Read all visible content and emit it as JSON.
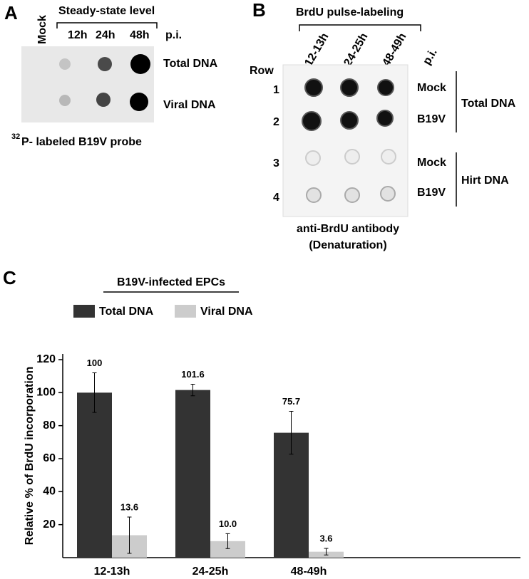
{
  "panel_a": {
    "letter": "A",
    "mock": "Mock",
    "header": "Steady-state level",
    "columns": [
      "12h",
      "24h",
      "48h"
    ],
    "pi": "p.i.",
    "rows": [
      "Total DNA",
      "Viral DNA"
    ],
    "probe_sup": "32",
    "probe": "P- labeled B19V probe"
  },
  "panel_b": {
    "letter": "B",
    "header": "BrdU pulse-labeling",
    "columns": [
      "12-13h",
      "24-25h",
      "48-49h"
    ],
    "pi": "p.i.",
    "row_title": "Row",
    "row_numbers": [
      "1",
      "2",
      "3",
      "4"
    ],
    "row_labels": [
      "Mock",
      "B19V",
      "Mock",
      "B19V"
    ],
    "groups": [
      "Total DNA",
      "Hirt DNA"
    ],
    "caption": [
      "anti-BrdU antibody",
      "(Denaturation)"
    ]
  },
  "panel_c": {
    "letter": "C",
    "header": "B19V-infected EPCs"
  },
  "chart_data": {
    "type": "bar",
    "y_label": "Relative % of BrdU incorporation",
    "categories": [
      "12-13h",
      "24-25h",
      "48-49h"
    ],
    "series": [
      {
        "name": "Total DNA",
        "color": "#333333",
        "values": [
          100,
          101.6,
          75.7
        ],
        "value_labels": [
          "100",
          "101.6",
          "75.7"
        ],
        "errors": [
          12,
          3.5,
          13
        ]
      },
      {
        "name": "Viral DNA",
        "color": "#cccccc",
        "values": [
          13.6,
          10.0,
          3.6
        ],
        "value_labels": [
          "13.6",
          "10.0",
          "3.6"
        ],
        "errors": [
          11,
          4.5,
          2
        ]
      }
    ],
    "ylim": [
      0,
      120
    ],
    "yticks": [
      20,
      40,
      60,
      80,
      100,
      120
    ]
  }
}
